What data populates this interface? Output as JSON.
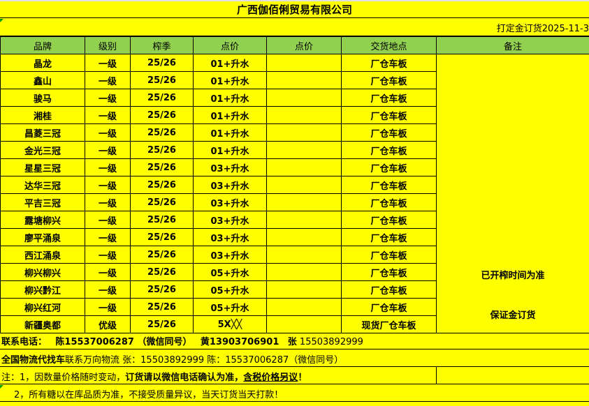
{
  "title": "广西伽佰俐贸易有限公司",
  "subtitle": "打定金订货2025-11-3",
  "headers": [
    "品牌",
    "级别",
    "榨季",
    "点价",
    "点价",
    "交货地点",
    "备注"
  ],
  "rows": [
    [
      "晶龙",
      "一级",
      "25/26",
      "01+升水",
      "",
      "厂仓车板"
    ],
    [
      "鑫山",
      "一级",
      "25/26",
      "01+升水",
      "",
      "厂仓车板"
    ],
    [
      "骏马",
      "一级",
      "25/26",
      "01+升水",
      "",
      "厂仓车板"
    ],
    [
      "湘桂",
      "一级",
      "25/26",
      "01+升水",
      "",
      "厂仓车板"
    ],
    [
      "昌菱三冠",
      "一级",
      "25/26",
      "01+升水",
      "",
      "厂仓车板"
    ],
    [
      "金光三冠",
      "一级",
      "25/26",
      "01+升水",
      "",
      "厂仓车板"
    ],
    [
      "星星三冠",
      "一级",
      "25/26",
      "03+升水",
      "",
      "厂仓车板"
    ],
    [
      "达华三冠",
      "一级",
      "25/26",
      "03+升水",
      "",
      "厂仓车板"
    ],
    [
      "平吉三冠",
      "一级",
      "25/26",
      "03+升水",
      "",
      "厂仓车板"
    ],
    [
      "露塘柳兴",
      "一级",
      "25/26",
      "03+升水",
      "",
      "厂仓车板"
    ],
    [
      "廖平涌泉",
      "一级",
      "25/26",
      "03+升水",
      "",
      "厂仓车板"
    ],
    [
      "西江涌泉",
      "一级",
      "25/26",
      "03+升水",
      "",
      "厂仓车板"
    ],
    [
      "柳兴柳兴",
      "一级",
      "25/26",
      "05+升水",
      "",
      "厂仓车板"
    ],
    [
      "柳兴黔江",
      "一级",
      "25/26",
      "05+升水",
      "",
      "厂仓车板"
    ],
    [
      "柳兴红河",
      "一级",
      "25/26",
      "05+升水",
      "",
      "厂仓车板"
    ],
    [
      "新疆奥都",
      "优级",
      "25/26",
      "5X╳╳",
      "",
      "现货厂仓车板"
    ]
  ],
  "remark": {
    "line1": "已开榨时间为准",
    "line2": "保证金订货"
  },
  "contact": {
    "label": "联系电话：",
    "chen": "陈15537006287 （微信同号）",
    "huang": "黄13903706901",
    "zhang": "张",
    "zhang_num": "15503892999"
  },
  "logistics": {
    "bold": "全国物流代找车",
    "rest": "联系万向物流 张：15503892999  陈：15537006287（微信同号）"
  },
  "note1": {
    "a": "注：1，因数量价格随时变动，",
    "b": "订货请以微信电话确认为准，",
    "c": "含税价格另议",
    "d": "！"
  },
  "note2": "2，所有糖以在库品质为准，不接受质量异议，当天订货当天打款！"
}
